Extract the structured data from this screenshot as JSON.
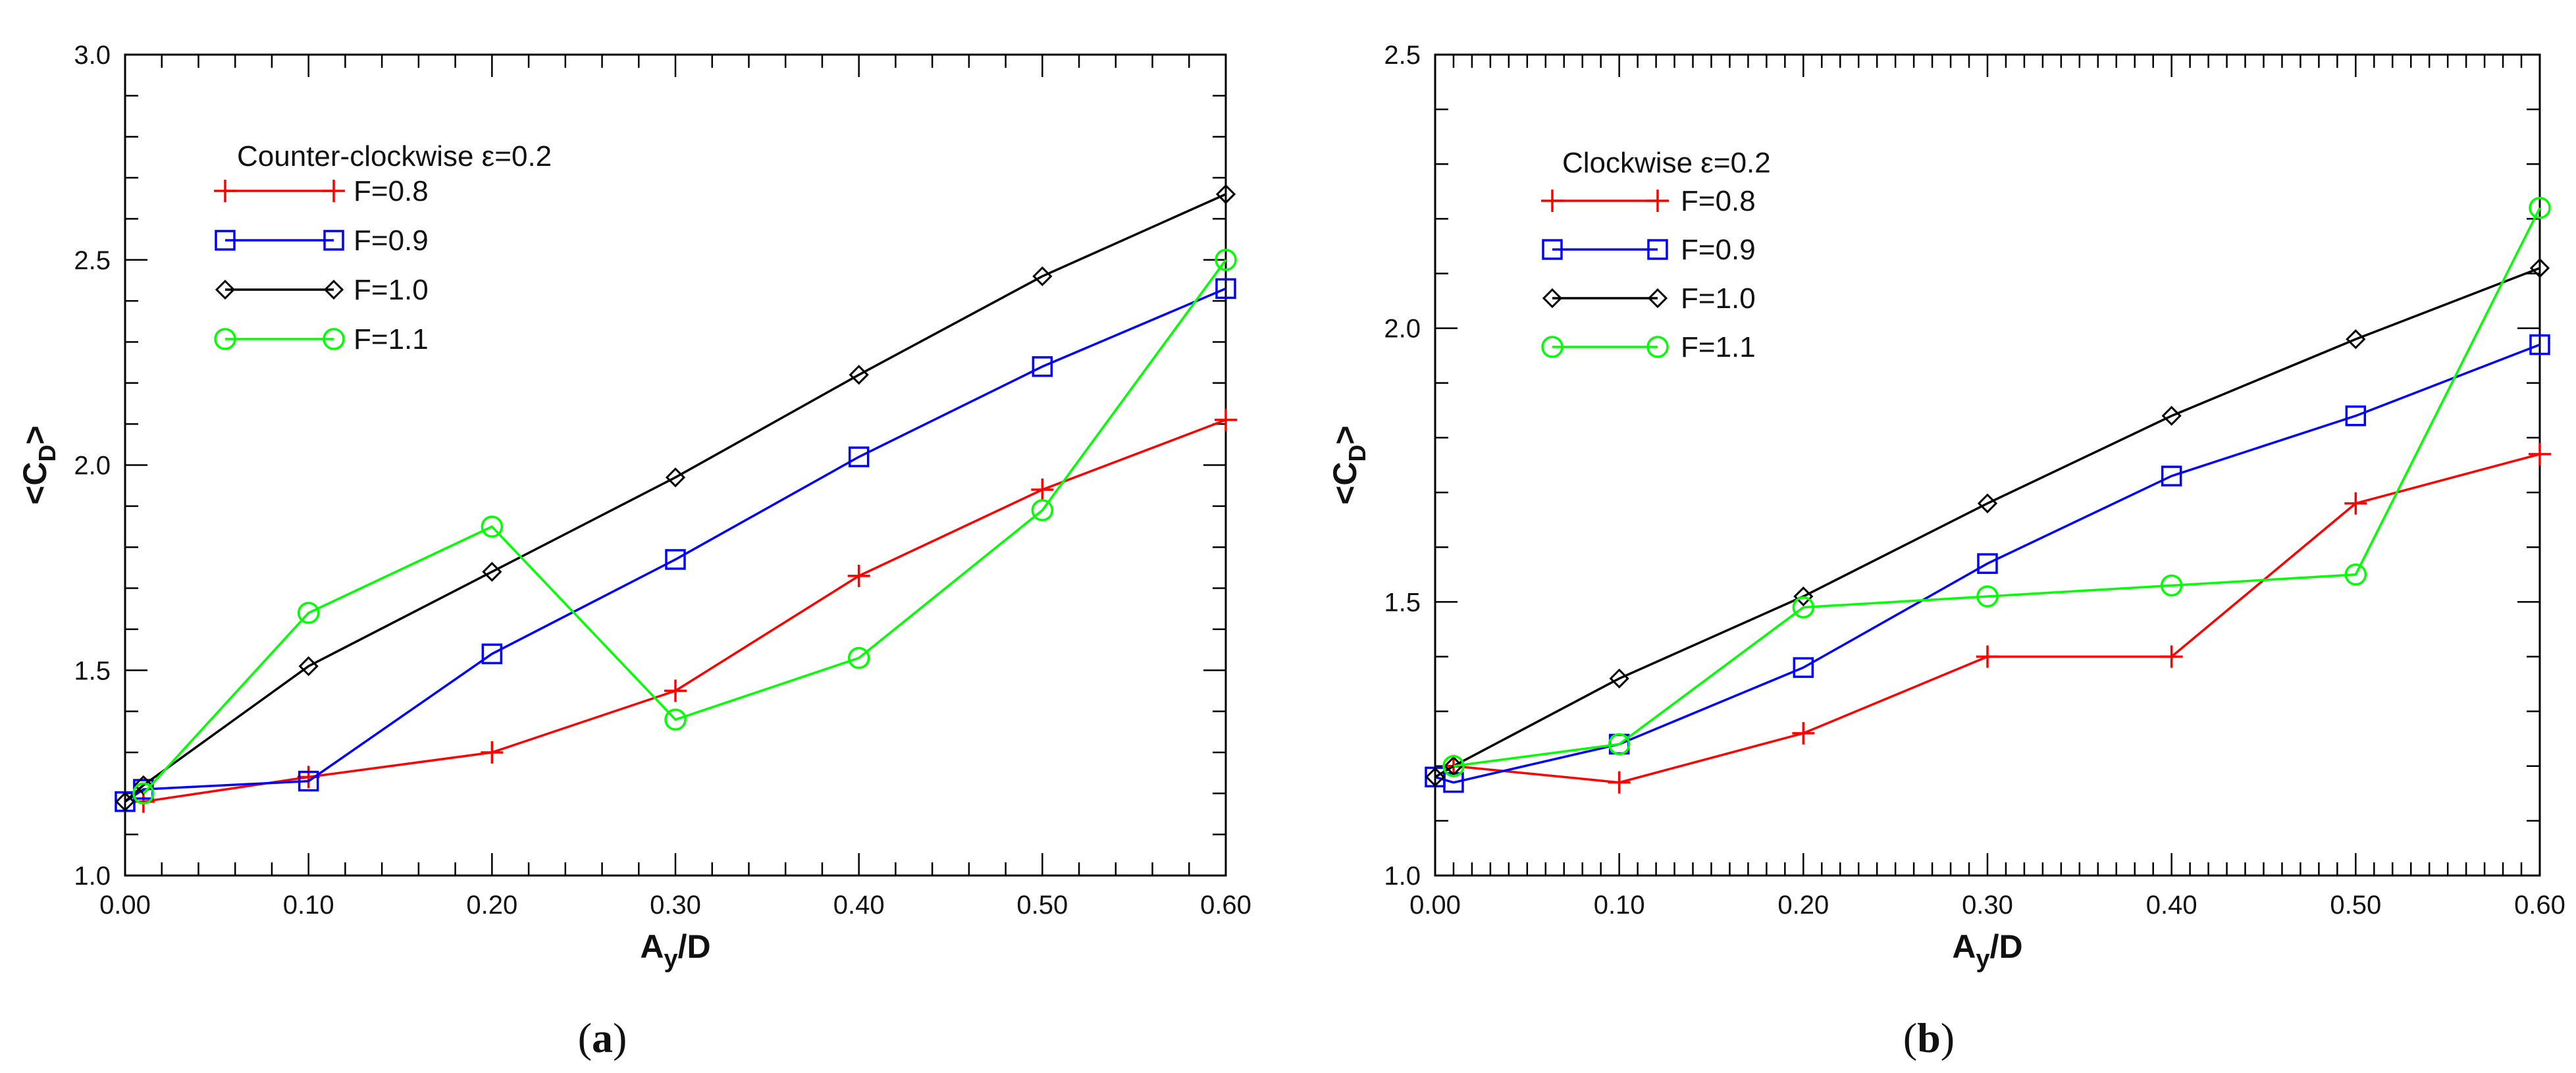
{
  "chart_data": [
    {
      "type": "line",
      "panel": "a",
      "caption_open": "(",
      "caption_letter": "a",
      "caption_close": ")",
      "legend_title": "Counter-clockwise ε=0.2",
      "xlabel_main": "A",
      "xlabel_sub": "y",
      "xlabel_rest": "/D",
      "ylabel_open": "<C",
      "ylabel_sub": "D",
      "ylabel_close": ">",
      "xlim": [
        0.0,
        0.6
      ],
      "ylim": [
        1.0,
        3.0
      ],
      "xticks": [
        0.0,
        0.1,
        0.2,
        0.3,
        0.4,
        0.5,
        0.6
      ],
      "xtick_labels": [
        "0.00",
        "0.10",
        "0.20",
        "0.30",
        "0.40",
        "0.50",
        "0.60"
      ],
      "yticks": [
        1.0,
        1.5,
        2.0,
        2.5,
        3.0
      ],
      "ytick_labels": [
        "1.0",
        "1.5",
        "2.0",
        "2.5",
        "3.0"
      ],
      "x_minor_step": 0.02,
      "y_minor_step": 0.1,
      "series": [
        {
          "name": "F=0.8",
          "color": "#ff0000",
          "marker": "plus",
          "x": [
            0.01,
            0.1,
            0.2,
            0.3,
            0.4,
            0.5,
            0.6
          ],
          "y": [
            1.18,
            1.24,
            1.3,
            1.45,
            1.73,
            1.94,
            2.11
          ]
        },
        {
          "name": "F=0.9",
          "color": "#0000ff",
          "marker": "square",
          "x": [
            0.0,
            0.01,
            0.1,
            0.2,
            0.3,
            0.4,
            0.5,
            0.6
          ],
          "y": [
            1.18,
            1.21,
            1.23,
            1.54,
            1.77,
            2.02,
            2.24,
            2.43
          ]
        },
        {
          "name": "F=1.0",
          "color": "#000000",
          "marker": "diamond",
          "x": [
            0.0,
            0.01,
            0.1,
            0.2,
            0.3,
            0.4,
            0.5,
            0.6
          ],
          "y": [
            1.18,
            1.22,
            1.51,
            1.74,
            1.97,
            2.22,
            2.46,
            2.66
          ]
        },
        {
          "name": "F=1.1",
          "color": "#00ff00",
          "marker": "circle",
          "x": [
            0.01,
            0.1,
            0.2,
            0.3,
            0.4,
            0.5,
            0.6
          ],
          "y": [
            1.2,
            1.64,
            1.85,
            1.38,
            1.53,
            1.89,
            2.5
          ]
        }
      ]
    },
    {
      "type": "line",
      "panel": "b",
      "caption_open": "(",
      "caption_letter": "b",
      "caption_close": ")",
      "legend_title": "Clockwise ε=0.2",
      "xlabel_main": "A",
      "xlabel_sub": "y",
      "xlabel_rest": "/D",
      "ylabel_open": "<C",
      "ylabel_sub": "D",
      "ylabel_close": ">",
      "xlim": [
        0.0,
        0.6
      ],
      "ylim": [
        1.0,
        2.5
      ],
      "xticks": [
        0.0,
        0.1,
        0.2,
        0.3,
        0.4,
        0.5,
        0.6
      ],
      "xtick_labels": [
        "0.00",
        "0.10",
        "0.20",
        "0.30",
        "0.40",
        "0.50",
        "0.60"
      ],
      "yticks": [
        1.0,
        1.5,
        2.0,
        2.5
      ],
      "ytick_labels": [
        "1.0",
        "1.5",
        "2.0",
        "2.5"
      ],
      "x_minor_step": 0.01,
      "y_minor_step": 0.1,
      "series": [
        {
          "name": "F=0.8",
          "color": "#ff0000",
          "marker": "plus",
          "x": [
            0.01,
            0.1,
            0.2,
            0.3,
            0.4,
            0.5,
            0.6
          ],
          "y": [
            1.2,
            1.17,
            1.26,
            1.4,
            1.4,
            1.68,
            1.77
          ]
        },
        {
          "name": "F=0.9",
          "color": "#0000ff",
          "marker": "square",
          "x": [
            0.0,
            0.01,
            0.1,
            0.2,
            0.3,
            0.4,
            0.5,
            0.6
          ],
          "y": [
            1.18,
            1.17,
            1.24,
            1.38,
            1.57,
            1.73,
            1.84,
            1.97
          ]
        },
        {
          "name": "F=1.0",
          "color": "#000000",
          "marker": "diamond",
          "x": [
            0.0,
            0.01,
            0.1,
            0.2,
            0.3,
            0.4,
            0.5,
            0.6
          ],
          "y": [
            1.18,
            1.2,
            1.36,
            1.51,
            1.68,
            1.84,
            1.98,
            2.11
          ]
        },
        {
          "name": "F=1.1",
          "color": "#00ff00",
          "marker": "circle",
          "x": [
            0.01,
            0.1,
            0.2,
            0.3,
            0.4,
            0.5,
            0.6
          ],
          "y": [
            1.2,
            1.24,
            1.49,
            1.51,
            1.53,
            1.55,
            2.22
          ]
        }
      ]
    }
  ]
}
